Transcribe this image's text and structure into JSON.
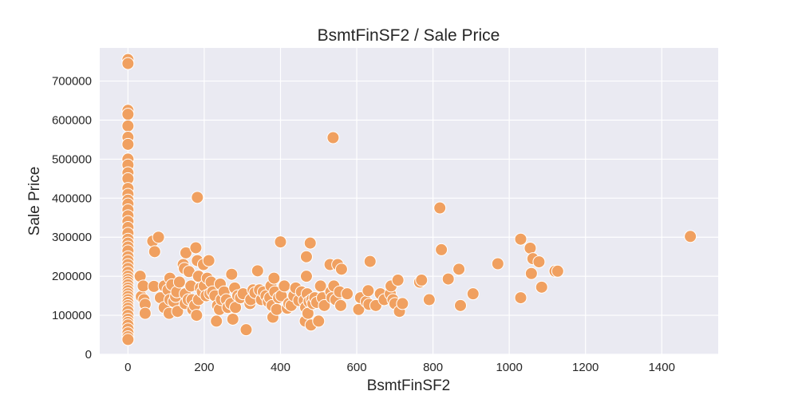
{
  "chart_data": {
    "type": "scatter",
    "title": "BsmtFinSF2 / Sale Price",
    "xlabel": "BsmtFinSF2",
    "ylabel": "Sale Price",
    "xlim": [
      -74,
      1548
    ],
    "ylim": [
      0,
      785000
    ],
    "xticks": [
      "0",
      "200",
      "400",
      "600",
      "800",
      "1000",
      "1200",
      "1400"
    ],
    "yticks": [
      "0",
      "100000",
      "200000",
      "300000",
      "400000",
      "500000",
      "600000",
      "700000"
    ],
    "grid": true,
    "colors": {
      "point": "#f0a060",
      "point_edge": "#ffffff",
      "plot_bg": "#eaeaf2",
      "grid": "#ffffff"
    },
    "points": [
      [
        0,
        755000
      ],
      [
        0,
        745000
      ],
      [
        0,
        625000
      ],
      [
        0,
        615000
      ],
      [
        0,
        585000
      ],
      [
        0,
        556000
      ],
      [
        0,
        538000
      ],
      [
        0,
        500000
      ],
      [
        0,
        485000
      ],
      [
        0,
        465000
      ],
      [
        0,
        450000
      ],
      [
        0,
        425000
      ],
      [
        0,
        410000
      ],
      [
        0,
        395000
      ],
      [
        0,
        385000
      ],
      [
        0,
        370000
      ],
      [
        0,
        355000
      ],
      [
        0,
        340000
      ],
      [
        0,
        325000
      ],
      [
        0,
        310000
      ],
      [
        0,
        295000
      ],
      [
        0,
        285000
      ],
      [
        0,
        275000
      ],
      [
        0,
        265000
      ],
      [
        0,
        250000
      ],
      [
        0,
        240000
      ],
      [
        0,
        230000
      ],
      [
        0,
        220000
      ],
      [
        0,
        210000
      ],
      [
        0,
        200000
      ],
      [
        0,
        192000
      ],
      [
        0,
        185000
      ],
      [
        0,
        178000
      ],
      [
        0,
        170000
      ],
      [
        0,
        163000
      ],
      [
        0,
        155000
      ],
      [
        0,
        148000
      ],
      [
        0,
        140000
      ],
      [
        0,
        133000
      ],
      [
        0,
        125000
      ],
      [
        0,
        118000
      ],
      [
        0,
        110000
      ],
      [
        0,
        100000
      ],
      [
        0,
        90000
      ],
      [
        0,
        82000
      ],
      [
        0,
        75000
      ],
      [
        0,
        65000
      ],
      [
        0,
        55000
      ],
      [
        0,
        45000
      ],
      [
        0,
        38000
      ],
      [
        32,
        200000
      ],
      [
        35,
        148000
      ],
      [
        40,
        175000
      ],
      [
        42,
        140000
      ],
      [
        45,
        128000
      ],
      [
        45,
        105000
      ],
      [
        65,
        290000
      ],
      [
        68,
        174000
      ],
      [
        70,
        263000
      ],
      [
        80,
        300000
      ],
      [
        85,
        145000
      ],
      [
        95,
        175000
      ],
      [
        95,
        120000
      ],
      [
        105,
        165000
      ],
      [
        108,
        105000
      ],
      [
        110,
        140000
      ],
      [
        110,
        195000
      ],
      [
        115,
        178000
      ],
      [
        120,
        135000
      ],
      [
        125,
        148000
      ],
      [
        128,
        160000
      ],
      [
        130,
        110000
      ],
      [
        135,
        185000
      ],
      [
        145,
        230000
      ],
      [
        148,
        220000
      ],
      [
        150,
        155000
      ],
      [
        150,
        130000
      ],
      [
        152,
        260000
      ],
      [
        158,
        140000
      ],
      [
        160,
        212000
      ],
      [
        165,
        175000
      ],
      [
        168,
        140000
      ],
      [
        170,
        115000
      ],
      [
        175,
        125000
      ],
      [
        178,
        273000
      ],
      [
        180,
        100000
      ],
      [
        182,
        402000
      ],
      [
        182,
        240000
      ],
      [
        185,
        200000
      ],
      [
        185,
        140000
      ],
      [
        190,
        170000
      ],
      [
        195,
        160000
      ],
      [
        198,
        230000
      ],
      [
        200,
        175000
      ],
      [
        205,
        150000
      ],
      [
        208,
        195000
      ],
      [
        212,
        240000
      ],
      [
        215,
        155000
      ],
      [
        218,
        185000
      ],
      [
        222,
        160000
      ],
      [
        228,
        150000
      ],
      [
        232,
        85000
      ],
      [
        235,
        125000
      ],
      [
        240,
        115000
      ],
      [
        242,
        180000
      ],
      [
        245,
        140000
      ],
      [
        252,
        160000
      ],
      [
        258,
        140000
      ],
      [
        262,
        120000
      ],
      [
        270,
        130000
      ],
      [
        272,
        205000
      ],
      [
        275,
        90000
      ],
      [
        280,
        170000
      ],
      [
        282,
        120000
      ],
      [
        288,
        150000
      ],
      [
        295,
        145000
      ],
      [
        302,
        155000
      ],
      [
        310,
        63000
      ],
      [
        320,
        130000
      ],
      [
        322,
        140000
      ],
      [
        328,
        165000
      ],
      [
        333,
        158000
      ],
      [
        340,
        214000
      ],
      [
        345,
        165000
      ],
      [
        350,
        140000
      ],
      [
        355,
        160000
      ],
      [
        362,
        150000
      ],
      [
        368,
        135000
      ],
      [
        372,
        145000
      ],
      [
        375,
        175000
      ],
      [
        378,
        125000
      ],
      [
        380,
        95000
      ],
      [
        383,
        195000
      ],
      [
        385,
        160000
      ],
      [
        390,
        115000
      ],
      [
        395,
        145000
      ],
      [
        400,
        288000
      ],
      [
        402,
        150000
      ],
      [
        410,
        175000
      ],
      [
        418,
        118000
      ],
      [
        422,
        130000
      ],
      [
        428,
        125000
      ],
      [
        435,
        150000
      ],
      [
        440,
        170000
      ],
      [
        448,
        138000
      ],
      [
        455,
        160000
      ],
      [
        462,
        138000
      ],
      [
        465,
        85000
      ],
      [
        466,
        120000
      ],
      [
        468,
        250000
      ],
      [
        468,
        200000
      ],
      [
        470,
        155000
      ],
      [
        472,
        105000
      ],
      [
        475,
        135000
      ],
      [
        478,
        285000
      ],
      [
        480,
        75000
      ],
      [
        482,
        140000
      ],
      [
        485,
        130000
      ],
      [
        490,
        145000
      ],
      [
        495,
        133000
      ],
      [
        500,
        85000
      ],
      [
        505,
        175000
      ],
      [
        510,
        145000
      ],
      [
        515,
        125000
      ],
      [
        530,
        230000
      ],
      [
        532,
        160000
      ],
      [
        535,
        145000
      ],
      [
        538,
        555000
      ],
      [
        540,
        175000
      ],
      [
        545,
        140000
      ],
      [
        550,
        230000
      ],
      [
        555,
        160000
      ],
      [
        558,
        125000
      ],
      [
        560,
        218000
      ],
      [
        575,
        155000
      ],
      [
        605,
        115000
      ],
      [
        610,
        145000
      ],
      [
        625,
        135000
      ],
      [
        630,
        163000
      ],
      [
        632,
        128000
      ],
      [
        635,
        238000
      ],
      [
        650,
        125000
      ],
      [
        662,
        155000
      ],
      [
        672,
        140000
      ],
      [
        688,
        155000
      ],
      [
        690,
        175000
      ],
      [
        695,
        140000
      ],
      [
        700,
        130000
      ],
      [
        708,
        190000
      ],
      [
        712,
        110000
      ],
      [
        720,
        130000
      ],
      [
        765,
        185000
      ],
      [
        770,
        190000
      ],
      [
        790,
        140000
      ],
      [
        818,
        375000
      ],
      [
        822,
        268000
      ],
      [
        840,
        193000
      ],
      [
        868,
        218000
      ],
      [
        872,
        125000
      ],
      [
        905,
        155000
      ],
      [
        970,
        232000
      ],
      [
        1030,
        295000
      ],
      [
        1030,
        145000
      ],
      [
        1055,
        272000
      ],
      [
        1058,
        207000
      ],
      [
        1062,
        245000
      ],
      [
        1078,
        237000
      ],
      [
        1085,
        172000
      ],
      [
        1120,
        213000
      ],
      [
        1127,
        213000
      ],
      [
        1475,
        302000
      ]
    ]
  }
}
